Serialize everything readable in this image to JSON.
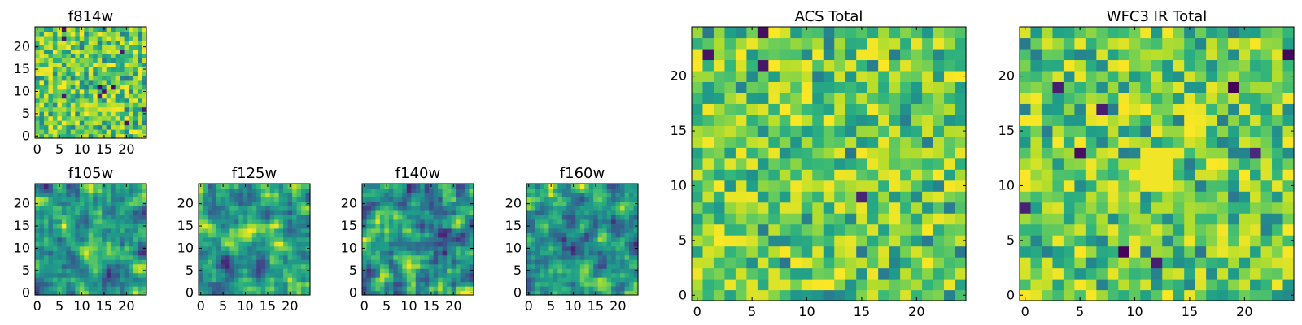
{
  "chart_data": [
    {
      "type": "heatmap",
      "title": "f814w",
      "grid": false,
      "colormap": "viridis",
      "x_ticks": [
        "0",
        "5",
        "10",
        "15",
        "20"
      ],
      "y_ticks": [
        "0",
        "5",
        "10",
        "15",
        "20"
      ],
      "xlim": [
        0,
        25
      ],
      "ylim": [
        0,
        25
      ],
      "shape": [
        25,
        25
      ],
      "texture": "pixel noise, mid-high values"
    },
    {
      "type": "heatmap",
      "title": "f105w",
      "grid": false,
      "colormap": "viridis",
      "x_ticks": [
        "0",
        "5",
        "10",
        "15",
        "20"
      ],
      "y_ticks": [
        "0",
        "5",
        "10",
        "15",
        "20"
      ],
      "xlim": [
        0,
        25
      ],
      "ylim": [
        0,
        25
      ],
      "shape": [
        25,
        25
      ],
      "texture": "smooth blobs"
    },
    {
      "type": "heatmap",
      "title": "f125w",
      "grid": false,
      "colormap": "viridis",
      "x_ticks": [
        "0",
        "5",
        "10",
        "15",
        "20"
      ],
      "y_ticks": [
        "0",
        "5",
        "10",
        "15",
        "20"
      ],
      "xlim": [
        0,
        25
      ],
      "ylim": [
        0,
        25
      ],
      "shape": [
        25,
        25
      ],
      "texture": "smooth blobs"
    },
    {
      "type": "heatmap",
      "title": "f140w",
      "grid": false,
      "colormap": "viridis",
      "x_ticks": [
        "0",
        "5",
        "10",
        "15",
        "20"
      ],
      "y_ticks": [
        "0",
        "5",
        "10",
        "15",
        "20"
      ],
      "xlim": [
        0,
        25
      ],
      "ylim": [
        0,
        25
      ],
      "shape": [
        25,
        25
      ],
      "texture": "smooth blobs"
    },
    {
      "type": "heatmap",
      "title": "f160w",
      "grid": false,
      "colormap": "viridis",
      "x_ticks": [
        "0",
        "5",
        "10",
        "15",
        "20"
      ],
      "y_ticks": [
        "0",
        "5",
        "10",
        "15",
        "20"
      ],
      "xlim": [
        0,
        25
      ],
      "ylim": [
        0,
        25
      ],
      "shape": [
        25,
        25
      ],
      "texture": "smooth blobs"
    },
    {
      "type": "heatmap",
      "title": "ACS Total",
      "grid": false,
      "colormap": "viridis",
      "x_ticks": [
        "0",
        "5",
        "10",
        "15",
        "20"
      ],
      "y_ticks": [
        "0",
        "5",
        "10",
        "15",
        "20"
      ],
      "xlim": [
        0,
        25
      ],
      "ylim": [
        0,
        25
      ],
      "shape": [
        25,
        25
      ],
      "texture": "pixel noise, mid-high values"
    },
    {
      "type": "heatmap",
      "title": "WFC3 IR Total",
      "grid": false,
      "colormap": "viridis",
      "x_ticks": [
        "0",
        "5",
        "10",
        "15",
        "20"
      ],
      "y_ticks": [
        "0",
        "5",
        "10",
        "15",
        "20"
      ],
      "xlim": [
        0,
        25
      ],
      "ylim": [
        0,
        25
      ],
      "shape": [
        25,
        25
      ],
      "texture": "pixel noise with bright patch near (12,12)"
    }
  ]
}
